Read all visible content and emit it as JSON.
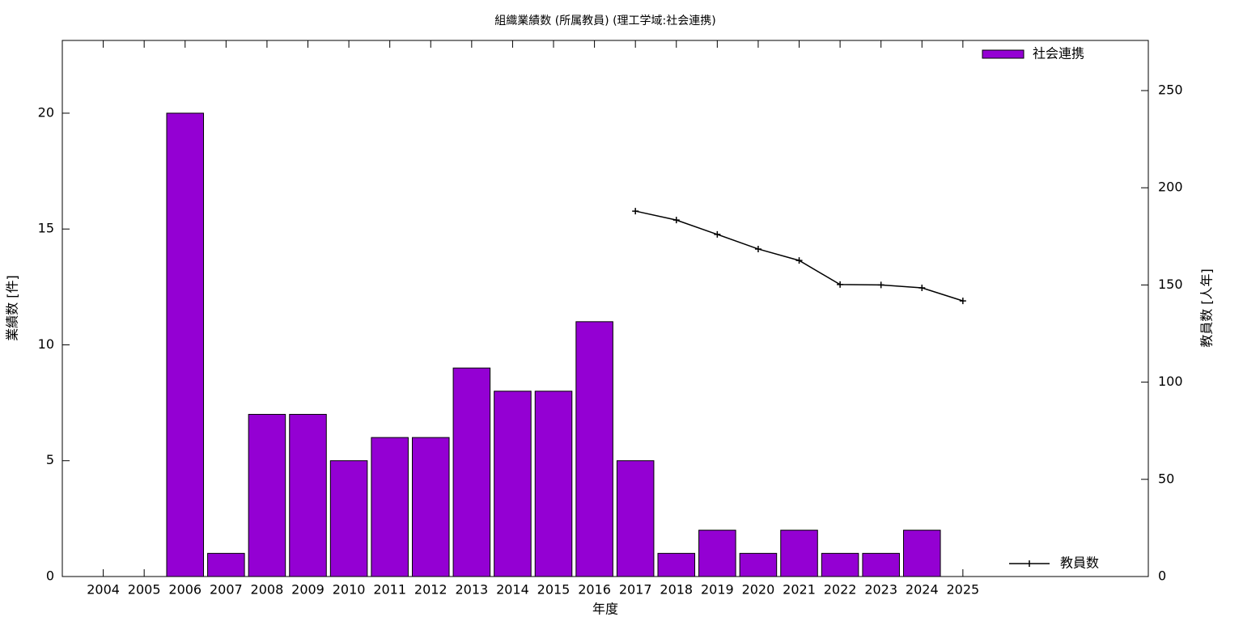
{
  "chart_data": {
    "type": "bar",
    "title": "組織業績数 (所属教員) (理工学域:社会連携)",
    "x_label": "年度",
    "y_label": "業績数 [件]",
    "y2_label": "教員数 [人年]",
    "x": [
      2004,
      2005,
      2006,
      2007,
      2008,
      2009,
      2010,
      2011,
      2012,
      2013,
      2014,
      2015,
      2016,
      2017,
      2018,
      2019,
      2020,
      2021,
      2022,
      2023,
      2024,
      2025
    ],
    "xlim": [
      2003,
      2029.53
    ],
    "xticks": [
      2004,
      2005,
      2006,
      2007,
      2008,
      2009,
      2010,
      2011,
      2012,
      2013,
      2014,
      2015,
      2016,
      2017,
      2018,
      2019,
      2020,
      2021,
      2022,
      2023,
      2024,
      2025
    ],
    "ylim": [
      0,
      23.14
    ],
    "yticks": [
      0,
      5,
      10,
      15,
      20
    ],
    "y2lim": [
      0,
      275.8
    ],
    "y2ticks": [
      0,
      50,
      100,
      150,
      200,
      250
    ],
    "series": [
      {
        "name": "社会連携",
        "type": "bar",
        "color": "#9400d3",
        "values": [
          null,
          null,
          20,
          1,
          7,
          7,
          5,
          6,
          6,
          9,
          8,
          8,
          11,
          5,
          1,
          2,
          1,
          2,
          1,
          1,
          2,
          null
        ]
      },
      {
        "name": "教員数",
        "type": "line",
        "axis": "y2",
        "color": "#000000",
        "values": [
          null,
          null,
          null,
          null,
          null,
          null,
          null,
          null,
          null,
          null,
          null,
          null,
          null,
          188,
          183.4,
          176,
          168.5,
          162.6,
          150.2,
          150,
          148.5,
          141.8
        ]
      }
    ]
  }
}
